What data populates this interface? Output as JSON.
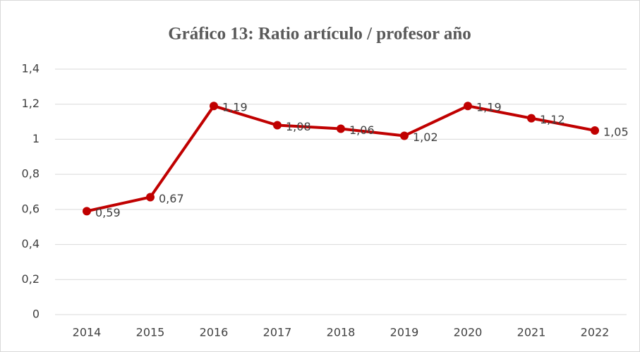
{
  "chart_data": {
    "type": "line",
    "title": "Gráfico 13: Ratio artículo / profesor año",
    "categories": [
      "2014",
      "2015",
      "2016",
      "2017",
      "2018",
      "2019",
      "2020",
      "2021",
      "2022"
    ],
    "series": [
      {
        "name": "Ratio",
        "color": "#c00000",
        "values": [
          0.59,
          0.67,
          1.19,
          1.08,
          1.06,
          1.02,
          1.19,
          1.12,
          1.05
        ],
        "value_labels": [
          "0,59",
          "0,67",
          "1,19",
          "1,08",
          "1,06",
          "1,02",
          "1,19",
          "1,12",
          "1,05"
        ]
      }
    ],
    "ylim": [
      0,
      1.4
    ],
    "yticks": [
      0,
      {
        "value": 0.2,
        "label": "0,2"
      },
      {
        "value": 0.4,
        "label": "0,4"
      },
      {
        "value": 0.6,
        "label": "0,6"
      },
      {
        "value": 0.8,
        "label": "0,8"
      },
      1,
      {
        "value": 1.2,
        "label": "1,2"
      },
      {
        "value": 1.4,
        "label": "1,4"
      }
    ],
    "grid": true
  }
}
